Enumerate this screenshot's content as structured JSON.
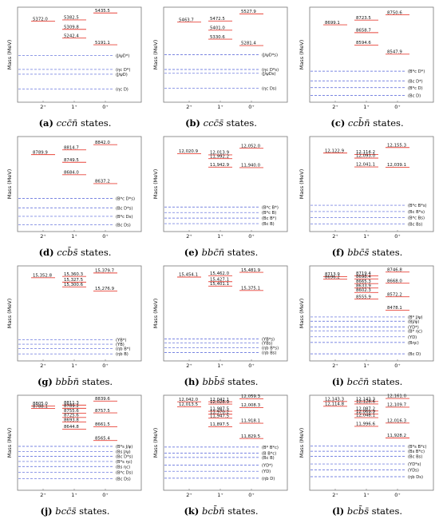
{
  "colors": {
    "state": "#e8443a",
    "threshold": "#4f5fd8",
    "frame": "#777777",
    "text": "#111111"
  },
  "chart_data": [
    {
      "type": "level_diagram",
      "label": "(a)",
      "system": "ccc̄n̄",
      "caption_suffix": "states.",
      "ylabel": "Mass (MeV)",
      "categories": [
        "2⁺",
        "1⁺",
        "0⁺"
      ],
      "ylim": [
        4750,
        5480
      ],
      "states": [
        {
          "cat": 0,
          "mass": 5372.0,
          "label": "5372.0"
        },
        {
          "cat": 1,
          "mass": 5382.5,
          "label": "5382.5"
        },
        {
          "cat": 1,
          "mass": 5309.8,
          "label": "5309.8"
        },
        {
          "cat": 1,
          "mass": 5242.4,
          "label": "5242.4"
        },
        {
          "cat": 2,
          "mass": 5435.5,
          "label": "5435.5"
        },
        {
          "cat": 2,
          "mass": 5191.1,
          "label": "5191.1"
        }
      ],
      "thresholds": [
        {
          "mass": 5110,
          "label": "(J/ψD*)"
        },
        {
          "mass": 5002,
          "label": "(ηc D*)"
        },
        {
          "mass": 4965,
          "label": "(J/ψD)"
        },
        {
          "mass": 4850,
          "label": "(ηc D)"
        }
      ]
    },
    {
      "type": "level_diagram",
      "label": "(b)",
      "system": "ccc̄s̄",
      "caption_suffix": "states.",
      "ylabel": "Mass (MeV)",
      "categories": [
        "2⁺",
        "1⁺",
        "0⁺"
      ],
      "ylim": [
        4840,
        5580
      ],
      "states": [
        {
          "cat": 0,
          "mass": 5463.7,
          "label": "5463.7"
        },
        {
          "cat": 1,
          "mass": 5472.5,
          "label": "5472.5"
        },
        {
          "cat": 1,
          "mass": 5401.0,
          "label": "5401.0"
        },
        {
          "cat": 1,
          "mass": 5330.6,
          "label": "5330.6"
        },
        {
          "cat": 2,
          "mass": 5527.9,
          "label": "5527.9"
        },
        {
          "cat": 2,
          "mass": 5281.4,
          "label": "5281.4"
        }
      ],
      "thresholds": [
        {
          "mass": 5210,
          "label": "(J/ψD*s)"
        },
        {
          "mass": 5095,
          "label": "(ηc D*s)"
        },
        {
          "mass": 5065,
          "label": "(J/ψDs)"
        },
        {
          "mass": 4950,
          "label": "(ηc Ds)"
        }
      ]
    },
    {
      "type": "level_diagram",
      "label": "(c)",
      "system": "ccb̄n̄",
      "caption_suffix": "states.",
      "ylabel": "Mass (MeV)",
      "categories": [
        "2⁺",
        "1⁺",
        "0⁺"
      ],
      "ylim": [
        8300,
        8790
      ],
      "states": [
        {
          "cat": 0,
          "mass": 8699.1,
          "label": "8699.1"
        },
        {
          "cat": 1,
          "mass": 8723.5,
          "label": "8723.5"
        },
        {
          "cat": 1,
          "mass": 8658.7,
          "label": "8658.7"
        },
        {
          "cat": 1,
          "mass": 8594.6,
          "label": "8594.6"
        },
        {
          "cat": 2,
          "mass": 8750.6,
          "label": "8750.6"
        },
        {
          "cat": 2,
          "mass": 8547.9,
          "label": "8547.9"
        }
      ],
      "thresholds": [
        {
          "mass": 8460,
          "label": "(B*c D*)"
        },
        {
          "mass": 8410,
          "label": "(Bc D*)"
        },
        {
          "mass": 8375,
          "label": "(B*c D)"
        },
        {
          "mass": 8335,
          "label": "(Bc D)"
        }
      ]
    },
    {
      "type": "level_diagram",
      "label": "(d)",
      "system": "ccb̄s̄",
      "caption_suffix": "states.",
      "ylabel": "Mass (MeV)",
      "categories": [
        "2⁺",
        "1⁺",
        "0⁺"
      ],
      "ylim": [
        8385,
        8885
      ],
      "states": [
        {
          "cat": 0,
          "mass": 8789.9,
          "label": "8789.9"
        },
        {
          "cat": 1,
          "mass": 8814.7,
          "label": "8814.7"
        },
        {
          "cat": 1,
          "mass": 8749.5,
          "label": "8749.5"
        },
        {
          "cat": 1,
          "mass": 8684.0,
          "label": "8684.0"
        },
        {
          "cat": 2,
          "mass": 8842.0,
          "label": "8842.0"
        },
        {
          "cat": 2,
          "mass": 8637.2,
          "label": "8637.2"
        }
      ],
      "thresholds": [
        {
          "mass": 8560,
          "label": "(B*c D*s)"
        },
        {
          "mass": 8510,
          "label": "(Bc D*s)"
        },
        {
          "mass": 8465,
          "label": "(B*c Ds)"
        },
        {
          "mass": 8420,
          "label": "(Bc Ds)"
        }
      ]
    },
    {
      "type": "level_diagram",
      "label": "(e)",
      "system": "bbc̄n̄",
      "caption_suffix": "states.",
      "ylabel": "Mass (MeV)",
      "categories": [
        "2⁺",
        "1⁺",
        "0⁺"
      ],
      "ylim": [
        11570,
        12120
      ],
      "states": [
        {
          "cat": 0,
          "mass": 12020.9,
          "label": "12,020.9"
        },
        {
          "cat": 1,
          "mass": 12013.9,
          "label": "12,013.9"
        },
        {
          "cat": 1,
          "mass": 11992.2,
          "label": "11,992.2"
        },
        {
          "cat": 1,
          "mass": 11942.9,
          "label": "11,942.9"
        },
        {
          "cat": 2,
          "mass": 12052.0,
          "label": "12,052.0"
        },
        {
          "cat": 2,
          "mass": 11940.0,
          "label": "11,940.0"
        }
      ],
      "thresholds": [
        {
          "mass": 11712,
          "label": "(B*c B*)"
        },
        {
          "mass": 11680,
          "label": "(B*c B)"
        },
        {
          "mass": 11648,
          "label": "(Bc B*)"
        },
        {
          "mass": 11616,
          "label": "(Bc B)"
        }
      ]
    },
    {
      "type": "level_diagram",
      "label": "(f)",
      "system": "bbc̄s̄",
      "caption_suffix": "states.",
      "ylabel": "Mass (MeV)",
      "categories": [
        "2⁺",
        "1⁺",
        "0⁺"
      ],
      "ylim": [
        11660,
        12220
      ],
      "states": [
        {
          "cat": 0,
          "mass": 12122.9,
          "label": "12,122.9"
        },
        {
          "cat": 1,
          "mass": 12114.2,
          "label": "12,114.2"
        },
        {
          "cat": 1,
          "mass": 12093.0,
          "label": "12,093.0"
        },
        {
          "cat": 1,
          "mass": 12041.1,
          "label": "12,041.1"
        },
        {
          "cat": 2,
          "mass": 12155.3,
          "label": "12,155.3"
        },
        {
          "cat": 2,
          "mass": 12039.1,
          "label": "12,039.1"
        }
      ],
      "thresholds": [
        {
          "mass": 11815,
          "label": "(B*c B*s)"
        },
        {
          "mass": 11778,
          "label": "(Bc B*s)"
        },
        {
          "mass": 11742,
          "label": "(B*c Bs)"
        },
        {
          "mass": 11705,
          "label": "(Bc Bs)"
        }
      ]
    },
    {
      "type": "level_diagram",
      "label": "(g)",
      "system": "bbb̄n̄",
      "caption_suffix": "states.",
      "ylabel": "Mass (MeV)",
      "categories": [
        "2⁺",
        "1⁺",
        "0⁺"
      ],
      "ylim": [
        14880,
        15420
      ],
      "states": [
        {
          "cat": 0,
          "mass": 15352.8,
          "label": "15,352.8"
        },
        {
          "cat": 1,
          "mass": 15360.3,
          "label": "15,360.3"
        },
        {
          "cat": 1,
          "mass": 15327.5,
          "label": "15,327.5"
        },
        {
          "cat": 1,
          "mass": 15300.6,
          "label": "15,300.6"
        },
        {
          "cat": 2,
          "mass": 15379.7,
          "label": "15,379.7"
        },
        {
          "cat": 2,
          "mass": 15276.9,
          "label": "15,276.9"
        }
      ],
      "thresholds": [
        {
          "mass": 15000,
          "label": "(ΥB*)"
        },
        {
          "mass": 14975,
          "label": "(ΥB)"
        },
        {
          "mass": 14950,
          "label": "(ηb B*)"
        },
        {
          "mass": 14920,
          "label": "(ηb B)"
        }
      ]
    },
    {
      "type": "level_diagram",
      "label": "(h)",
      "system": "bbb̄s̄",
      "caption_suffix": "states.",
      "ylabel": "Mass (MeV)",
      "categories": [
        "2⁺",
        "1⁺",
        "0⁺"
      ],
      "ylim": [
        14960,
        15520
      ],
      "states": [
        {
          "cat": 0,
          "mass": 15454.1,
          "label": "15,454.1"
        },
        {
          "cat": 1,
          "mass": 15462.0,
          "label": "15,462.0"
        },
        {
          "cat": 1,
          "mass": 15427.1,
          "label": "15,427.1"
        },
        {
          "cat": 1,
          "mass": 15401.1,
          "label": "15,401.1"
        },
        {
          "cat": 2,
          "mass": 15481.9,
          "label": "15,481.9"
        },
        {
          "cat": 2,
          "mass": 15375.1,
          "label": "15,375.1"
        }
      ],
      "thresholds": [
        {
          "mass": 15090,
          "label": "(ΥB*s)"
        },
        {
          "mass": 15065,
          "label": "(ΥBs)"
        },
        {
          "mass": 15038,
          "label": "(ηb B*s)"
        },
        {
          "mass": 15010,
          "label": "(ηb Bs)"
        }
      ]
    },
    {
      "type": "level_diagram",
      "label": "(i)",
      "system": "bcc̄n̄",
      "caption_suffix": "states.",
      "ylabel": "Mass (MeV)",
      "categories": [
        "2⁺",
        "1⁺",
        "0⁺"
      ],
      "ylim": [
        8120,
        8790
      ],
      "states": [
        {
          "cat": 0,
          "mass": 8713.9,
          "label": "8713.9"
        },
        {
          "cat": 0,
          "mass": 8696.2,
          "label": "8696.2"
        },
        {
          "cat": 1,
          "mass": 8719.4,
          "label": "8719.4"
        },
        {
          "cat": 1,
          "mass": 8698.4,
          "label": "8698.4"
        },
        {
          "cat": 1,
          "mass": 8665.3,
          "label": "8665.3"
        },
        {
          "cat": 1,
          "mass": 8633.9,
          "label": "8633.9"
        },
        {
          "cat": 1,
          "mass": 8602.3,
          "label": "8602.3"
        },
        {
          "cat": 1,
          "mass": 8555.9,
          "label": "8555.9"
        },
        {
          "cat": 2,
          "mass": 8746.8,
          "label": "8746.8"
        },
        {
          "cat": 2,
          "mass": 8668.0,
          "label": "8668.0"
        },
        {
          "cat": 2,
          "mass": 8572.2,
          "label": "8572.2"
        },
        {
          "cat": 2,
          "mass": 8478.1,
          "label": "8478.1"
        }
      ],
      "thresholds": [
        {
          "mass": 8430,
          "label": "(B* J/ψ)"
        },
        {
          "mass": 8400,
          "label": "(BJ/ψ)"
        },
        {
          "mass": 8360,
          "label": "(ΥD*)"
        },
        {
          "mass": 8330,
          "label": "(B* ηc)"
        },
        {
          "mass": 8290,
          "label": "(ΥD)"
        },
        {
          "mass": 8250,
          "label": "(Bηc)"
        },
        {
          "mass": 8170,
          "label": "(Bc D)"
        }
      ]
    },
    {
      "type": "level_diagram",
      "label": "(j)",
      "system": "bcc̄s̄",
      "caption_suffix": "states.",
      "ylabel": "Mass (MeV)",
      "categories": [
        "2⁺",
        "1⁺",
        "0⁺"
      ],
      "ylim": [
        8220,
        8880
      ],
      "states": [
        {
          "cat": 0,
          "mass": 8805.0,
          "label": "8805.0"
        },
        {
          "cat": 0,
          "mass": 8788.1,
          "label": "8788.1"
        },
        {
          "cat": 1,
          "mass": 8811.3,
          "label": "8811.3"
        },
        {
          "cat": 1,
          "mass": 8789.2,
          "label": "8789.2"
        },
        {
          "cat": 1,
          "mass": 8755.6,
          "label": "8755.6"
        },
        {
          "cat": 1,
          "mass": 8725.6,
          "label": "8725.6"
        },
        {
          "cat": 1,
          "mass": 8693.8,
          "label": "8693.8"
        },
        {
          "cat": 1,
          "mass": 8644.8,
          "label": "8644.8"
        },
        {
          "cat": 2,
          "mass": 8839.6,
          "label": "8839.6"
        },
        {
          "cat": 2,
          "mass": 8757.5,
          "label": "8757.5"
        },
        {
          "cat": 2,
          "mass": 8661.5,
          "label": "8661.5"
        },
        {
          "cat": 2,
          "mass": 8565.4,
          "label": "8565.4"
        }
      ],
      "thresholds": [
        {
          "mass": 8525,
          "label": "(B*s J/ψ)"
        },
        {
          "mass": 8490,
          "label": "(Bs J/ψ)"
        },
        {
          "mass": 8455,
          "label": "(Bc D*s)"
        },
        {
          "mass": 8420,
          "label": "(B*s ηc)"
        },
        {
          "mass": 8385,
          "label": "(Bs ηc)"
        },
        {
          "mass": 8345,
          "label": "(B*c Ds)"
        },
        {
          "mass": 8300,
          "label": "(Bc Ds)"
        }
      ]
    },
    {
      "type": "level_diagram",
      "label": "(k)",
      "system": "bcb̄n̄",
      "caption_suffix": "states.",
      "ylabel": "Mass (MeV)",
      "categories": [
        "2⁺",
        "1⁺",
        "0⁺"
      ],
      "ylim": [
        11530,
        12080
      ],
      "states": [
        {
          "cat": 0,
          "mass": 12042.0,
          "label": "12,042.0"
        },
        {
          "cat": 0,
          "mass": 12013.5,
          "label": "12,013.5"
        },
        {
          "cat": 1,
          "mass": 12042.1,
          "label": "12,042.1"
        },
        {
          "cat": 1,
          "mass": 12028.9,
          "label": "12,028.9"
        },
        {
          "cat": 1,
          "mass": 11987.5,
          "label": "11,987.5"
        },
        {
          "cat": 1,
          "mass": 11970.2,
          "label": "11,970.2"
        },
        {
          "cat": 1,
          "mass": 11947.5,
          "label": "11,947.5"
        },
        {
          "cat": 1,
          "mass": 11897.5,
          "label": "11,897.5"
        },
        {
          "cat": 2,
          "mass": 12059.3,
          "label": "12,059.3"
        },
        {
          "cat": 2,
          "mass": 12008.3,
          "label": "12,008.3"
        },
        {
          "cat": 2,
          "mass": 11918.1,
          "label": "11,918.1"
        },
        {
          "cat": 2,
          "mass": 11829.5,
          "label": "11,829.5"
        }
      ],
      "thresholds": [
        {
          "mass": 11780,
          "label": "(B* B*c)"
        },
        {
          "mass": 11745,
          "label": "(B B*c)"
        },
        {
          "mass": 11720,
          "label": "(Bc B)"
        },
        {
          "mass": 11675,
          "label": "(ΥD*)"
        },
        {
          "mass": 11640,
          "label": "(ΥD)"
        },
        {
          "mass": 11600,
          "label": "(ηb D)"
        }
      ]
    },
    {
      "type": "level_diagram",
      "label": "(l)",
      "system": "bcb̄s̄",
      "caption_suffix": "states.",
      "ylabel": "Mass (MeV)",
      "categories": [
        "2⁺",
        "1⁺",
        "0⁺"
      ],
      "ylim": [
        11620,
        12180
      ],
      "states": [
        {
          "cat": 0,
          "mass": 12143.3,
          "label": "12,143.3"
        },
        {
          "cat": 0,
          "mass": 12114.8,
          "label": "12,114.8"
        },
        {
          "cat": 1,
          "mass": 12143.3,
          "label": "12,143.3"
        },
        {
          "cat": 1,
          "mass": 12128.6,
          "label": "12,128.6"
        },
        {
          "cat": 1,
          "mass": 12087.2,
          "label": "12,087.2"
        },
        {
          "cat": 1,
          "mass": 12069.9,
          "label": "12,069.9"
        },
        {
          "cat": 1,
          "mass": 12048.1,
          "label": "12,048.1"
        },
        {
          "cat": 1,
          "mass": 11996.6,
          "label": "11,996.6"
        },
        {
          "cat": 2,
          "mass": 12161.0,
          "label": "12,161.0"
        },
        {
          "cat": 2,
          "mass": 12109.7,
          "label": "12,109.7"
        },
        {
          "cat": 2,
          "mass": 12016.3,
          "label": "12,016.3"
        },
        {
          "cat": 2,
          "mass": 11928.2,
          "label": "11,928.2"
        }
      ],
      "thresholds": [
        {
          "mass": 11880,
          "label": "(B*s B*c)"
        },
        {
          "mass": 11850,
          "label": "(Bs B*c)"
        },
        {
          "mass": 11820,
          "label": "(Bc Bs)"
        },
        {
          "mass": 11775,
          "label": "(ΥD*s)"
        },
        {
          "mass": 11740,
          "label": "(ΥDs)"
        },
        {
          "mass": 11700,
          "label": "(ηb Ds)"
        }
      ]
    }
  ]
}
